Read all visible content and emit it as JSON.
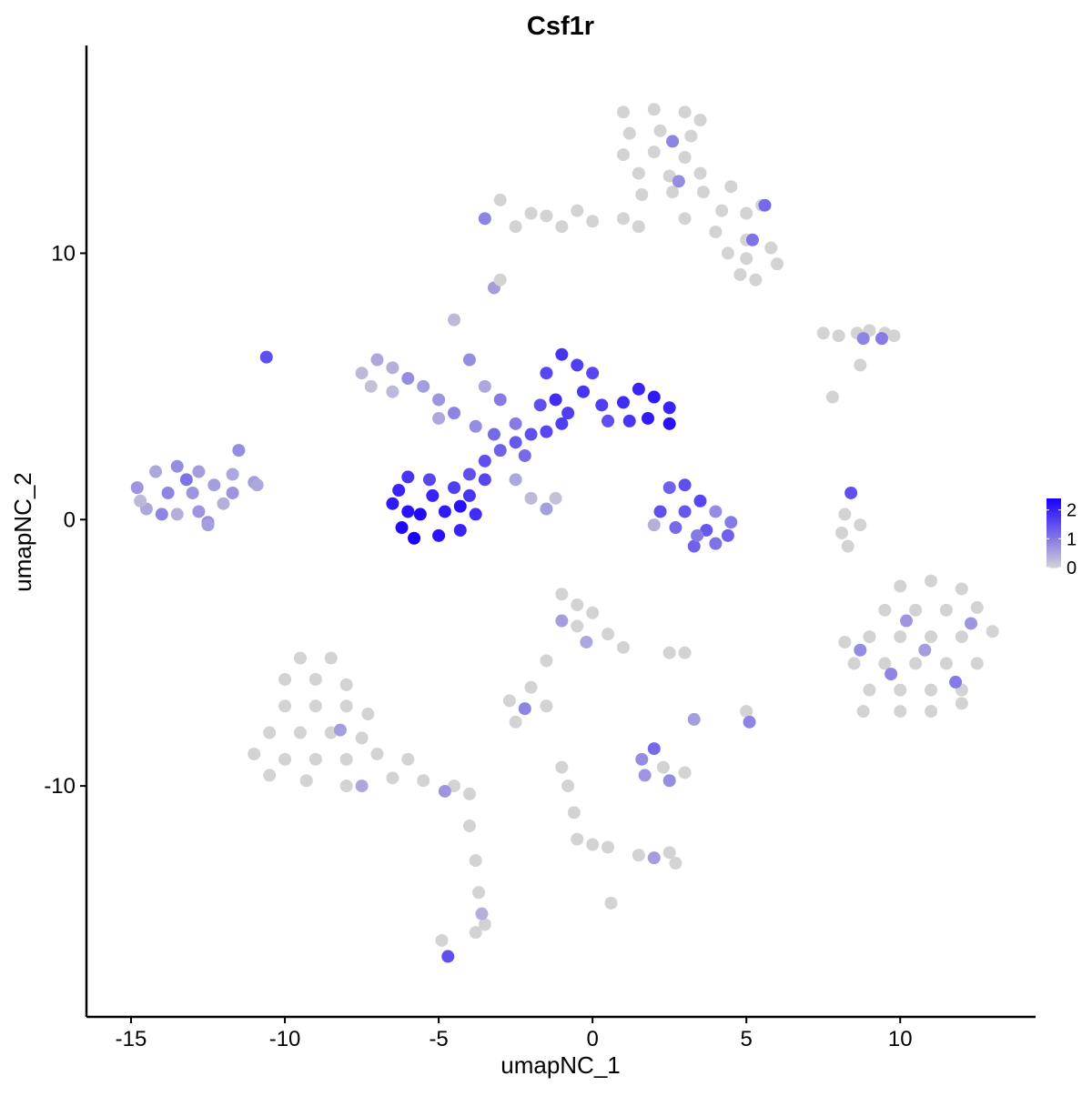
{
  "chart_data": {
    "type": "scatter",
    "title": "Csf1r",
    "x_label": "umapNC_1",
    "y_label": "umapNC_2",
    "xlim": [
      -16.45,
      14.4
    ],
    "ylim": [
      -18.67,
      17.8
    ],
    "xticks": [
      -15,
      -10,
      -5,
      0,
      5,
      10
    ],
    "yticks": [
      -10,
      0,
      10
    ],
    "color_low": "#d3d3d3",
    "color_high": "#1a00ff",
    "color_lim": [
      0,
      2.4
    ],
    "color_ticks": [
      0,
      1,
      2
    ],
    "points": [
      [
        1,
        15.3,
        0
      ],
      [
        2,
        15.4,
        0
      ],
      [
        3,
        15.3,
        0
      ],
      [
        3.5,
        15,
        0
      ],
      [
        1.2,
        14.5,
        0
      ],
      [
        2.2,
        14.6,
        0
      ],
      [
        3.2,
        14.4,
        0
      ],
      [
        1,
        13.7,
        0
      ],
      [
        2,
        13.8,
        0
      ],
      [
        3,
        13.6,
        0
      ],
      [
        1.5,
        13,
        0
      ],
      [
        2.5,
        12.9,
        0
      ],
      [
        3.5,
        13,
        0
      ],
      [
        1.6,
        12.2,
        0
      ],
      [
        2.6,
        12.3,
        0
      ],
      [
        3.6,
        12.3,
        0
      ],
      [
        4.5,
        12.5,
        0
      ],
      [
        5.5,
        11.8,
        0
      ],
      [
        5,
        11.5,
        0
      ],
      [
        4.2,
        11.6,
        0
      ],
      [
        3,
        11.3,
        0
      ],
      [
        4,
        10.8,
        0
      ],
      [
        5,
        10.5,
        0
      ],
      [
        5.8,
        10.2,
        0
      ],
      [
        6,
        9.6,
        0
      ],
      [
        5,
        9.8,
        0
      ],
      [
        4.8,
        9.2,
        0
      ],
      [
        5.3,
        9,
        0
      ],
      [
        4.4,
        10,
        0
      ],
      [
        1.5,
        11,
        0
      ],
      [
        1,
        11.3,
        0
      ],
      [
        0,
        11.2,
        0
      ],
      [
        -1,
        11,
        0
      ],
      [
        -2,
        11.5,
        0
      ],
      [
        -3,
        12,
        0
      ],
      [
        -2.5,
        11,
        0
      ],
      [
        -0.5,
        11.6,
        0
      ],
      [
        -1.5,
        11.4,
        0
      ],
      [
        2.6,
        14.2,
        0.9
      ],
      [
        -3.5,
        11.3,
        0.9
      ],
      [
        5.2,
        10.5,
        1.1
      ],
      [
        2.8,
        12.7,
        0.8
      ],
      [
        5.6,
        11.8,
        1.2
      ],
      [
        -3.2,
        8.7,
        0.6
      ],
      [
        -3,
        9,
        0
      ],
      [
        7.5,
        7,
        0
      ],
      [
        8,
        6.9,
        0
      ],
      [
        8.6,
        7,
        0
      ],
      [
        9,
        7.1,
        0
      ],
      [
        9.5,
        7,
        0
      ],
      [
        9.8,
        6.9,
        0
      ],
      [
        8.7,
        5.8,
        0
      ],
      [
        7.8,
        4.6,
        0
      ],
      [
        8.8,
        6.8,
        0.9
      ],
      [
        9.4,
        6.8,
        1
      ],
      [
        -10.6,
        6.1,
        1.5
      ],
      [
        -14.8,
        1.2,
        0.7
      ],
      [
        -14.2,
        1.8,
        0.5
      ],
      [
        -13.5,
        2,
        0.8
      ],
      [
        -12.8,
        1.8,
        0.6
      ],
      [
        -14.5,
        0.4,
        0.5
      ],
      [
        -13.8,
        1,
        0.9
      ],
      [
        -13,
        1,
        0.7
      ],
      [
        -12.3,
        1.3,
        0.6
      ],
      [
        -11.7,
        1.7,
        0.5
      ],
      [
        -11.5,
        2.6,
        0.8
      ],
      [
        -11,
        1.4,
        0.6
      ],
      [
        -13.5,
        0.2,
        0.4
      ],
      [
        -12.8,
        0.3,
        0.7
      ],
      [
        -12.5,
        -0.1,
        0.8
      ],
      [
        -14,
        0.2,
        0.9
      ],
      [
        -12,
        0.6,
        0.4
      ],
      [
        -11.7,
        1,
        0.7
      ],
      [
        -10.9,
        1.3,
        0.5
      ],
      [
        -13.2,
        1.5,
        1.1
      ],
      [
        -12.5,
        -0.2,
        0.6
      ],
      [
        -14.7,
        0.7,
        0.3
      ],
      [
        -7.5,
        5.5,
        0.3
      ],
      [
        -7,
        6,
        0.5
      ],
      [
        -6.5,
        5.7,
        0.4
      ],
      [
        -6,
        5.3,
        0.8
      ],
      [
        -5.5,
        5,
        0.6
      ],
      [
        -5,
        4.5,
        0.7
      ],
      [
        -4.5,
        4,
        0.9
      ],
      [
        -7.2,
        5,
        0.2
      ],
      [
        -6.5,
        4.8,
        0.3
      ],
      [
        -5,
        3.8,
        0.5
      ],
      [
        -4.5,
        7.5,
        0.3
      ],
      [
        -4,
        6,
        0.8
      ],
      [
        -3.5,
        5,
        0.5
      ],
      [
        -3,
        4.5,
        1
      ],
      [
        -2.5,
        1.5,
        0.5
      ],
      [
        -2,
        0.8,
        0.3
      ],
      [
        -1.5,
        0.4,
        0.6
      ],
      [
        -1.2,
        0.8,
        0.2
      ],
      [
        -3.5,
        2.2,
        1.5
      ],
      [
        -3,
        2.6,
        1.3
      ],
      [
        -2.5,
        2.9,
        1.4
      ],
      [
        -2,
        3.2,
        1.5
      ],
      [
        -1.5,
        3.3,
        1.6
      ],
      [
        -1,
        3.6,
        1.7
      ],
      [
        -2.5,
        3.6,
        1
      ],
      [
        -3.2,
        3.2,
        1.2
      ],
      [
        -3.8,
        3.5,
        0.8
      ],
      [
        -2.2,
        2.4,
        1.2
      ],
      [
        -1.5,
        5.5,
        1.6
      ],
      [
        -1,
        6.2,
        1.8
      ],
      [
        -0.5,
        5.8,
        1.7
      ],
      [
        -1.2,
        4.5,
        1.9
      ],
      [
        -0.3,
        4.8,
        1.8
      ],
      [
        0.3,
        4.3,
        1.7
      ],
      [
        0.5,
        3.7,
        1.5
      ],
      [
        1,
        4.4,
        1.9
      ],
      [
        1.5,
        4.9,
        2
      ],
      [
        2,
        4.6,
        2.1
      ],
      [
        2.5,
        4.2,
        2
      ],
      [
        2.5,
        3.6,
        2.2
      ],
      [
        1.8,
        3.8,
        2.1
      ],
      [
        1.2,
        3.7,
        1.8
      ],
      [
        0,
        5.5,
        1.6
      ],
      [
        -0.8,
        4,
        1.7
      ],
      [
        -1.7,
        4.3,
        1.5
      ],
      [
        -6.5,
        0.6,
        2.1
      ],
      [
        -6.2,
        -0.3,
        2.3
      ],
      [
        -5.8,
        -0.7,
        2.4
      ],
      [
        -5,
        -0.6,
        2.2
      ],
      [
        -4.3,
        -0.4,
        2
      ],
      [
        -3.8,
        0.2,
        1.9
      ],
      [
        -4,
        0.9,
        1.8
      ],
      [
        -4.5,
        1.2,
        1.7
      ],
      [
        -5.3,
        1.5,
        1.6
      ],
      [
        -6,
        1.6,
        1.8
      ],
      [
        -6.3,
        1.1,
        2
      ],
      [
        -5.6,
        0.2,
        2.3
      ],
      [
        -4.8,
        0.3,
        2.1
      ],
      [
        -5.2,
        0.9,
        2
      ],
      [
        -4.3,
        0.5,
        2.2
      ],
      [
        -6,
        0.3,
        2.2
      ],
      [
        -3.5,
        1.5,
        1.6
      ],
      [
        -4,
        1.7,
        1.5
      ],
      [
        2.5,
        1.2,
        1.3
      ],
      [
        3,
        1.3,
        1.5
      ],
      [
        3.5,
        0.7,
        1.6
      ],
      [
        3,
        0.3,
        1.4
      ],
      [
        2.7,
        -0.3,
        1.2
      ],
      [
        3.3,
        -1,
        1.3
      ],
      [
        4,
        -0.9,
        1.1
      ],
      [
        4.4,
        -0.6,
        1.3
      ],
      [
        4.5,
        -0.1,
        1
      ],
      [
        3.7,
        -0.4,
        1.4
      ],
      [
        2,
        -0.2,
        0.4
      ],
      [
        2.2,
        0.3,
        1.5
      ],
      [
        4,
        0.3,
        0.8
      ],
      [
        3.4,
        -0.6,
        1
      ],
      [
        8.2,
        0.2,
        0
      ],
      [
        8.1,
        -0.5,
        0
      ],
      [
        8.3,
        -1,
        0
      ],
      [
        8.7,
        -0.2,
        0
      ],
      [
        8.4,
        1,
        1.5
      ],
      [
        10,
        -2.5,
        0
      ],
      [
        11,
        -2.3,
        0
      ],
      [
        12,
        -2.6,
        0
      ],
      [
        9.5,
        -3.4,
        0
      ],
      [
        10.5,
        -3.4,
        0
      ],
      [
        11.5,
        -3.4,
        0
      ],
      [
        12.5,
        -3.3,
        0
      ],
      [
        8.2,
        -4.6,
        0
      ],
      [
        9,
        -4.4,
        0
      ],
      [
        10,
        -4.4,
        0
      ],
      [
        11,
        -4.4,
        0
      ],
      [
        12,
        -4.4,
        0
      ],
      [
        13,
        -4.2,
        0
      ],
      [
        8.5,
        -5.4,
        0
      ],
      [
        9.5,
        -5.4,
        0
      ],
      [
        10.5,
        -5.4,
        0
      ],
      [
        11.5,
        -5.4,
        0
      ],
      [
        12.5,
        -5.4,
        0
      ],
      [
        9,
        -6.4,
        0
      ],
      [
        10,
        -6.4,
        0
      ],
      [
        11,
        -6.4,
        0
      ],
      [
        12,
        -6.4,
        0
      ],
      [
        8.8,
        -7.2,
        0
      ],
      [
        10,
        -7.2,
        0
      ],
      [
        11,
        -7.2,
        0
      ],
      [
        12,
        -6.9,
        0
      ],
      [
        12.3,
        -3.9,
        0.7
      ],
      [
        9.7,
        -5.8,
        0.9
      ],
      [
        10.8,
        -4.9,
        0.6
      ],
      [
        8.7,
        -4.9,
        0.8
      ],
      [
        11.8,
        -6.1,
        1
      ],
      [
        10.2,
        -3.8,
        0.7
      ],
      [
        -9.5,
        -5.2,
        0
      ],
      [
        -8.5,
        -5.2,
        0
      ],
      [
        -10,
        -6,
        0
      ],
      [
        -9,
        -6,
        0
      ],
      [
        -8,
        -6.2,
        0
      ],
      [
        -10,
        -7,
        0
      ],
      [
        -9,
        -7,
        0
      ],
      [
        -8,
        -7,
        0
      ],
      [
        -7.3,
        -7.3,
        0
      ],
      [
        -10.5,
        -8,
        0
      ],
      [
        -9.5,
        -8,
        0
      ],
      [
        -8.5,
        -8,
        0
      ],
      [
        -7.5,
        -8.2,
        0
      ],
      [
        -11,
        -8.8,
        0
      ],
      [
        -10,
        -9,
        0
      ],
      [
        -9,
        -9,
        0
      ],
      [
        -8,
        -9,
        0
      ],
      [
        -7,
        -8.8,
        0
      ],
      [
        -6,
        -9,
        0
      ],
      [
        -10.5,
        -9.6,
        0
      ],
      [
        -9.3,
        -9.8,
        0
      ],
      [
        -8,
        -10,
        0
      ],
      [
        -6.5,
        -9.7,
        0
      ],
      [
        -5.5,
        -9.8,
        0
      ],
      [
        -4.5,
        -10,
        0
      ],
      [
        -4,
        -10.3,
        0
      ],
      [
        -7.5,
        -10,
        0.5
      ],
      [
        -8.2,
        -7.9,
        0.6
      ],
      [
        -4.8,
        -10.2,
        0.7
      ],
      [
        -4,
        -11.5,
        0
      ],
      [
        -3.8,
        -12.8,
        0
      ],
      [
        -3.7,
        -14,
        0
      ],
      [
        -3.5,
        -15.2,
        0
      ],
      [
        -3.8,
        -15.5,
        0
      ],
      [
        -4.9,
        -15.8,
        0
      ],
      [
        -3.6,
        -14.8,
        0.4
      ],
      [
        -4.7,
        -16.4,
        1.5
      ],
      [
        -1,
        -2.8,
        0
      ],
      [
        -0.5,
        -3.2,
        0
      ],
      [
        0,
        -3.5,
        0
      ],
      [
        -0.5,
        -4,
        0
      ],
      [
        0.5,
        -4.3,
        0
      ],
      [
        1,
        -4.8,
        0
      ],
      [
        -1.5,
        -5.3,
        0
      ],
      [
        -2,
        -6.3,
        0
      ],
      [
        -2.7,
        -6.8,
        0
      ],
      [
        -1.5,
        -7,
        0
      ],
      [
        -2.5,
        -7.6,
        0
      ],
      [
        2.5,
        -5,
        0
      ],
      [
        3,
        -5,
        0
      ],
      [
        5,
        -7.2,
        0
      ],
      [
        -1,
        -3.8,
        0.6
      ],
      [
        -0.2,
        -4.6,
        0.5
      ],
      [
        -2.2,
        -7.1,
        0.9
      ],
      [
        3.3,
        -7.5,
        0.6
      ],
      [
        5.1,
        -7.6,
        0.9
      ],
      [
        2.3,
        -9.3,
        0
      ],
      [
        3,
        -9.5,
        0
      ],
      [
        2,
        -8.6,
        1.2
      ],
      [
        1.6,
        -9,
        0.8
      ],
      [
        1.7,
        -9.6,
        0.7
      ],
      [
        2.5,
        -9.8,
        0.8
      ],
      [
        -1,
        -9.3,
        0
      ],
      [
        -0.8,
        -10,
        0
      ],
      [
        -0.6,
        -11,
        0
      ],
      [
        -0.5,
        -12,
        0
      ],
      [
        0,
        -12.2,
        0
      ],
      [
        0.5,
        -12.3,
        0
      ],
      [
        1.5,
        -12.6,
        0
      ],
      [
        2.5,
        -12.5,
        0
      ],
      [
        2.7,
        -12.9,
        0
      ],
      [
        0.6,
        -14.4,
        0
      ],
      [
        2,
        -12.7,
        0.6
      ]
    ]
  }
}
